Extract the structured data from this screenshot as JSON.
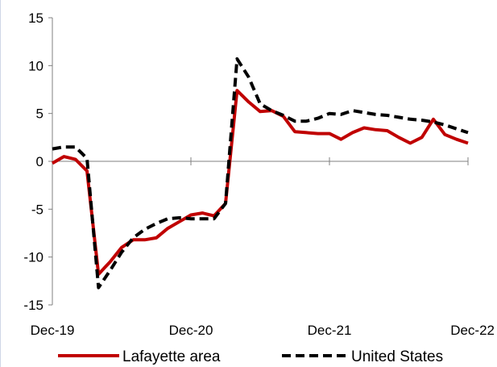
{
  "chart_data": {
    "type": "line",
    "title": "",
    "xlabel": "",
    "ylabel": "",
    "x_ticks": [
      "Dec-19",
      "Dec-20",
      "Dec-21",
      "Dec-22"
    ],
    "x_tick_months": [
      0,
      12,
      24,
      36
    ],
    "y_ticks": [
      15,
      10,
      5,
      0,
      -5,
      -10,
      -15
    ],
    "ylim": [
      -15,
      15
    ],
    "xlim_months": [
      0,
      36
    ],
    "grid": false,
    "legend_position": "bottom",
    "series": [
      {
        "name": "Lafayette area",
        "color": "#c00000",
        "style": "solid",
        "x": [
          0,
          1,
          2,
          3,
          4,
          5,
          6,
          7,
          8,
          9,
          10,
          11,
          12,
          13,
          14,
          15,
          16,
          17,
          18,
          19,
          20,
          21,
          22,
          23,
          24,
          25,
          26,
          27,
          28,
          29,
          30,
          31,
          32,
          33,
          34,
          35,
          36
        ],
        "values": [
          -0.2,
          0.5,
          0.2,
          -1.0,
          -11.8,
          -10.5,
          -9.0,
          -8.2,
          -8.2,
          -8.0,
          -7.0,
          -6.3,
          -5.6,
          -5.4,
          -5.7,
          -4.4,
          7.4,
          6.2,
          5.2,
          5.3,
          4.7,
          3.1,
          3.0,
          2.9,
          2.9,
          2.3,
          3.0,
          3.5,
          3.3,
          3.2,
          2.5,
          1.9,
          2.5,
          4.4,
          2.8,
          2.3,
          1.9
        ]
      },
      {
        "name": "United States",
        "color": "#000000",
        "style": "dashed",
        "x": [
          0,
          1,
          2,
          3,
          4,
          5,
          6,
          7,
          8,
          9,
          10,
          11,
          12,
          13,
          14,
          15,
          16,
          17,
          18,
          19,
          20,
          21,
          22,
          23,
          24,
          25,
          26,
          27,
          28,
          29,
          30,
          31,
          32,
          33,
          34,
          35,
          36
        ],
        "values": [
          1.3,
          1.5,
          1.5,
          0.3,
          -13.2,
          -11.4,
          -9.5,
          -8.0,
          -7.1,
          -6.5,
          -6.0,
          -5.9,
          -6.0,
          -6.0,
          -6.0,
          -4.4,
          10.7,
          8.8,
          6.0,
          5.3,
          4.8,
          4.2,
          4.2,
          4.5,
          5.0,
          4.9,
          5.3,
          5.1,
          4.9,
          4.8,
          4.6,
          4.4,
          4.3,
          4.1,
          3.8,
          3.4,
          3.0
        ]
      }
    ]
  }
}
